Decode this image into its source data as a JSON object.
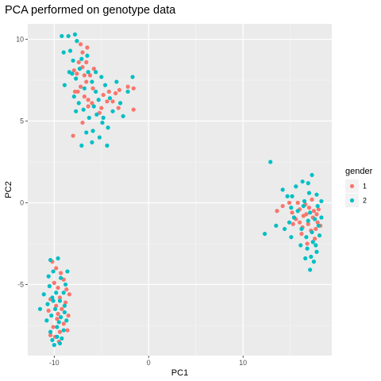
{
  "chart_data": {
    "type": "scatter",
    "title": "PCA performed on genotype data",
    "xlabel": "PC1",
    "ylabel": "PC2",
    "xlim": [
      -12.8,
      19.4
    ],
    "ylim": [
      -9.35,
      10.95
    ],
    "xticks": [
      {
        "value": -10,
        "label": "-10"
      },
      {
        "value": 0,
        "label": "0"
      },
      {
        "value": 10,
        "label": "10"
      }
    ],
    "yticks": [
      {
        "value": -5,
        "label": "-5"
      },
      {
        "value": 0,
        "label": "0"
      },
      {
        "value": 5,
        "label": "5"
      },
      {
        "value": 10,
        "label": "10"
      }
    ],
    "grid": true,
    "panel_background": "#ebebeb",
    "legend": {
      "title": "gender",
      "position": "right"
    },
    "series": [
      {
        "name": "1",
        "color": "#f8766d",
        "points": [
          [
            -8.0,
            4.1
          ],
          [
            -7.2,
            9.7
          ],
          [
            -7.0,
            9.2
          ],
          [
            -7.4,
            8.6
          ],
          [
            -7.0,
            8.3
          ],
          [
            -7.6,
            7.9
          ],
          [
            -6.8,
            7.8
          ],
          [
            -6.6,
            7.4
          ],
          [
            -6.2,
            7.8
          ],
          [
            -5.8,
            8.2
          ],
          [
            -7.9,
            8.1
          ],
          [
            -7.2,
            7.1
          ],
          [
            -6.8,
            6.5
          ],
          [
            -6.4,
            6.3
          ],
          [
            -7.0,
            4.9
          ],
          [
            -6.0,
            6.1
          ],
          [
            -5.0,
            5.8
          ],
          [
            -4.4,
            6.2
          ],
          [
            -3.8,
            6.2
          ],
          [
            -3.2,
            5.8
          ],
          [
            -2.2,
            7.1
          ],
          [
            -1.6,
            7.0
          ],
          [
            -1.6,
            5.7
          ],
          [
            -4.2,
            6.8
          ],
          [
            -3.5,
            6.7
          ],
          [
            -6.5,
            9.5
          ],
          [
            -6.6,
            8.6
          ],
          [
            -7.5,
            6.8
          ],
          [
            -5.2,
            5.5
          ],
          [
            -6.4,
            5.9
          ],
          [
            -7.8,
            6.8
          ],
          [
            -4.8,
            6.6
          ],
          [
            -3.1,
            6.9
          ],
          [
            -5.9,
            7.0
          ],
          [
            -10.2,
            -3.6
          ],
          [
            -9.8,
            -4.0
          ],
          [
            -9.3,
            -4.3
          ],
          [
            -10.0,
            -4.9
          ],
          [
            -9.6,
            -5.2
          ],
          [
            -8.7,
            -5.3
          ],
          [
            -9.4,
            -5.8
          ],
          [
            -10.4,
            -5.9
          ],
          [
            -8.4,
            -5.6
          ],
          [
            -9.8,
            -6.3
          ],
          [
            -10.6,
            -6.6
          ],
          [
            -9.2,
            -6.5
          ],
          [
            -8.5,
            -6.9
          ],
          [
            -9.7,
            -7.1
          ],
          [
            -9.0,
            -7.4
          ],
          [
            -10.1,
            -7.6
          ],
          [
            -9.4,
            -7.9
          ],
          [
            -8.6,
            -7.8
          ],
          [
            -9.9,
            -8.2
          ],
          [
            -9.5,
            -8.5
          ],
          [
            -10.4,
            -8.1
          ],
          [
            -9.0,
            -4.7
          ],
          [
            -8.8,
            -6.1
          ],
          [
            -9.6,
            -6.8
          ],
          [
            13.6,
            -0.5
          ],
          [
            14.2,
            -0.2
          ],
          [
            14.9,
            0.0
          ],
          [
            15.2,
            -0.6
          ],
          [
            15.6,
            -1.0
          ],
          [
            16.0,
            -0.4
          ],
          [
            16.4,
            -0.8
          ],
          [
            16.0,
            -1.2
          ],
          [
            16.7,
            -0.7
          ],
          [
            17.0,
            -0.3
          ],
          [
            17.4,
            -0.9
          ],
          [
            17.9,
            -1.2
          ],
          [
            17.2,
            -1.7
          ],
          [
            16.3,
            -1.5
          ],
          [
            17.6,
            -2.2
          ],
          [
            16.8,
            -2.5
          ],
          [
            18.0,
            -0.4
          ],
          [
            17.7,
            -1.6
          ],
          [
            15.3,
            -1.3
          ],
          [
            16.6,
            -0.1
          ],
          [
            17.3,
            0.2
          ],
          [
            17.8,
            -0.7
          ],
          [
            16.2,
            -1.9
          ],
          [
            15.8,
            0.0
          ],
          [
            18.2,
            -1.4
          ],
          [
            16.9,
            -1.3
          ],
          [
            17.5,
            -0.5
          ]
        ]
      },
      {
        "name": "2",
        "color": "#00bfc4",
        "points": [
          [
            -8.5,
            10.2
          ],
          [
            -7.8,
            10.3
          ],
          [
            -9.0,
            9.2
          ],
          [
            -8.3,
            9.3
          ],
          [
            -7.6,
            9.9
          ],
          [
            -8.0,
            8.7
          ],
          [
            -7.1,
            8.8
          ],
          [
            -8.4,
            8.0
          ],
          [
            -7.7,
            7.6
          ],
          [
            -6.4,
            8.0
          ],
          [
            -6.0,
            7.4
          ],
          [
            -5.6,
            8.0
          ],
          [
            -5.0,
            7.7
          ],
          [
            -7.9,
            6.5
          ],
          [
            -7.4,
            6.1
          ],
          [
            -7.7,
            5.6
          ],
          [
            -6.9,
            5.7
          ],
          [
            -6.3,
            5.2
          ],
          [
            -5.5,
            5.4
          ],
          [
            -4.8,
            5.2
          ],
          [
            -4.9,
            4.9
          ],
          [
            -4.3,
            4.6
          ],
          [
            -5.9,
            4.4
          ],
          [
            -6.6,
            4.3
          ],
          [
            -5.2,
            4.0
          ],
          [
            -4.4,
            3.5
          ],
          [
            -6.0,
            3.7
          ],
          [
            -7.1,
            3.5
          ],
          [
            -5.3,
            6.3
          ],
          [
            -4.6,
            7.2
          ],
          [
            -3.8,
            5.6
          ],
          [
            -3.0,
            6.1
          ],
          [
            -2.7,
            5.3
          ],
          [
            -2.2,
            6.8
          ],
          [
            -1.7,
            7.7
          ],
          [
            -9.2,
            10.2
          ],
          [
            -8.9,
            7.2
          ],
          [
            -7.3,
            8.2
          ],
          [
            -6.5,
            9.0
          ],
          [
            -5.6,
            6.8
          ],
          [
            -4.1,
            6.4
          ],
          [
            -3.4,
            7.4
          ],
          [
            -6.8,
            7.0
          ],
          [
            -8.1,
            7.9
          ],
          [
            -5.8,
            5.9
          ],
          [
            -10.4,
            -3.5
          ],
          [
            -9.6,
            -3.4
          ],
          [
            -10.1,
            -4.2
          ],
          [
            -9.3,
            -4.6
          ],
          [
            -10.5,
            -5.1
          ],
          [
            -9.8,
            -5.5
          ],
          [
            -9.0,
            -5.5
          ],
          [
            -11.1,
            -5.6
          ],
          [
            -10.2,
            -5.8
          ],
          [
            -9.4,
            -6.0
          ],
          [
            -8.9,
            -6.3
          ],
          [
            -10.7,
            -6.2
          ],
          [
            -9.9,
            -6.5
          ],
          [
            -9.3,
            -7.0
          ],
          [
            -11.5,
            -6.5
          ],
          [
            -10.3,
            -6.9
          ],
          [
            -10.8,
            -7.2
          ],
          [
            -9.7,
            -7.6
          ],
          [
            -9.0,
            -7.8
          ],
          [
            -10.4,
            -7.9
          ],
          [
            -9.7,
            -8.2
          ],
          [
            -10.2,
            -8.4
          ],
          [
            -9.2,
            -8.3
          ],
          [
            -10.0,
            -8.7
          ],
          [
            -9.4,
            -8.6
          ],
          [
            -8.7,
            -7.2
          ],
          [
            -8.6,
            -4.2
          ],
          [
            -8.8,
            -5.0
          ],
          [
            -10.6,
            -4.5
          ],
          [
            -9.5,
            -7.3
          ],
          [
            -10.1,
            -6.0
          ],
          [
            -8.9,
            -6.7
          ],
          [
            12.9,
            2.5
          ],
          [
            14.2,
            0.8
          ],
          [
            14.7,
            0.4
          ],
          [
            15.6,
            1.0
          ],
          [
            16.3,
            1.3
          ],
          [
            17.3,
            1.7
          ],
          [
            16.9,
            1.2
          ],
          [
            17.8,
            0.5
          ],
          [
            18.3,
            0.1
          ],
          [
            15.1,
            -0.3
          ],
          [
            15.8,
            -0.5
          ],
          [
            16.4,
            -0.2
          ],
          [
            17.1,
            -0.6
          ],
          [
            17.6,
            -1.0
          ],
          [
            18.0,
            -1.4
          ],
          [
            17.3,
            -1.8
          ],
          [
            16.7,
            -2.1
          ],
          [
            17.4,
            -2.4
          ],
          [
            16.8,
            -2.8
          ],
          [
            17.2,
            -3.3
          ],
          [
            17.8,
            -3.0
          ],
          [
            17.1,
            -4.1
          ],
          [
            15.1,
            -2.1
          ],
          [
            14.4,
            -1.6
          ],
          [
            13.5,
            -1.4
          ],
          [
            12.3,
            -1.9
          ],
          [
            16.2,
            -1.6
          ],
          [
            15.4,
            -0.9
          ],
          [
            16.9,
            -1.1
          ],
          [
            18.1,
            -2.0
          ],
          [
            17.7,
            -2.6
          ],
          [
            16.5,
            0.1
          ],
          [
            15.2,
            0.4
          ],
          [
            17.0,
            0.6
          ],
          [
            16.1,
            -2.6
          ],
          [
            17.9,
            -0.2
          ],
          [
            14.9,
            -1.2
          ],
          [
            16.6,
            -3.4
          ],
          [
            17.5,
            -3.6
          ],
          [
            18.3,
            -0.9
          ]
        ]
      }
    ]
  }
}
